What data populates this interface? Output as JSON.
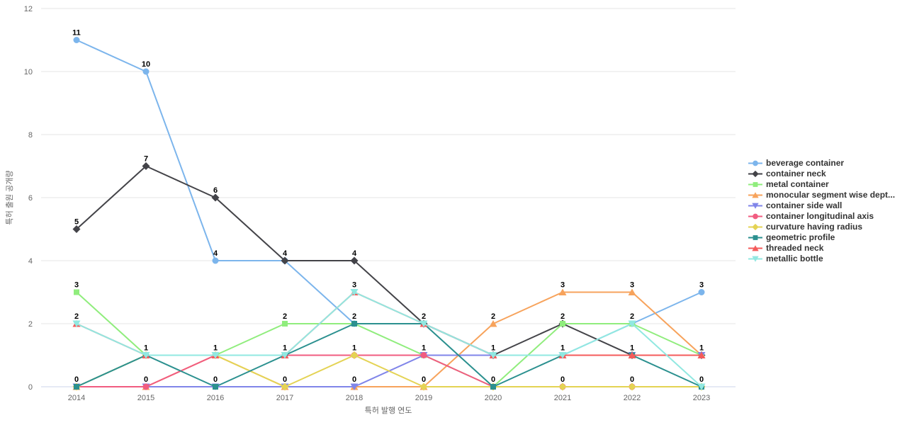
{
  "chart_data": {
    "type": "line",
    "x": [
      "2014",
      "2015",
      "2016",
      "2017",
      "2018",
      "2019",
      "2020",
      "2021",
      "2022",
      "2023"
    ],
    "series": [
      {
        "name": "beverage container",
        "color": "#7cb5ec",
        "symbol": "circle",
        "values": [
          11,
          10,
          4,
          4,
          2,
          2,
          1,
          1,
          2,
          3
        ]
      },
      {
        "name": "container neck",
        "color": "#434348",
        "symbol": "diamond",
        "values": [
          5,
          7,
          6,
          4,
          4,
          2,
          1,
          2,
          1,
          1
        ]
      },
      {
        "name": "metal container",
        "color": "#90ed7d",
        "symbol": "square",
        "values": [
          3,
          1,
          1,
          2,
          2,
          1,
          0,
          2,
          2,
          1
        ]
      },
      {
        "name": "monocular segment wise dept...",
        "color": "#f7a35c",
        "symbol": "triangle",
        "values": [
          0,
          0,
          1,
          0,
          0,
          0,
          2,
          3,
          3,
          1
        ]
      },
      {
        "name": "container side wall",
        "color": "#8085e9",
        "symbol": "triangle-down",
        "values": [
          0,
          0,
          0,
          0,
          0,
          1,
          1,
          1,
          1,
          1
        ]
      },
      {
        "name": "container longitudinal axis",
        "color": "#f15c80",
        "symbol": "circle",
        "values": [
          0,
          0,
          1,
          1,
          1,
          1,
          0,
          0,
          0,
          0
        ]
      },
      {
        "name": "curvature having radius",
        "color": "#e4d354",
        "symbol": "diamond",
        "values": [
          0,
          1,
          1,
          0,
          1,
          0,
          0,
          0,
          0,
          0
        ]
      },
      {
        "name": "geometric profile",
        "color": "#2b908f",
        "symbol": "square",
        "values": [
          0,
          1,
          0,
          1,
          2,
          2,
          0,
          1,
          1,
          0
        ]
      },
      {
        "name": "threaded neck",
        "color": "#f45b5b",
        "symbol": "triangle",
        "values": [
          2,
          1,
          1,
          1,
          3,
          2,
          1,
          1,
          1,
          1
        ]
      },
      {
        "name": "metallic bottle",
        "color": "#91e8e1",
        "symbol": "triangle-down",
        "values": [
          2,
          1,
          1,
          1,
          3,
          2,
          1,
          1,
          2,
          0
        ]
      }
    ],
    "title": "",
    "xlabel": "특허 발행 연도",
    "ylabel": "특허 출원 공개량",
    "ylim": [
      0,
      12
    ],
    "yticks": [
      0,
      2,
      4,
      6,
      8,
      10,
      12
    ],
    "grid": "horizontal",
    "legend_position": "right",
    "data_labels": true
  },
  "colors": {
    "gridline": "#e6e6e6",
    "axis_line": "#ccd6eb",
    "tick_text": "#666666",
    "data_label_text": "#000000",
    "legend_text": "#333333",
    "background": "#ffffff"
  }
}
